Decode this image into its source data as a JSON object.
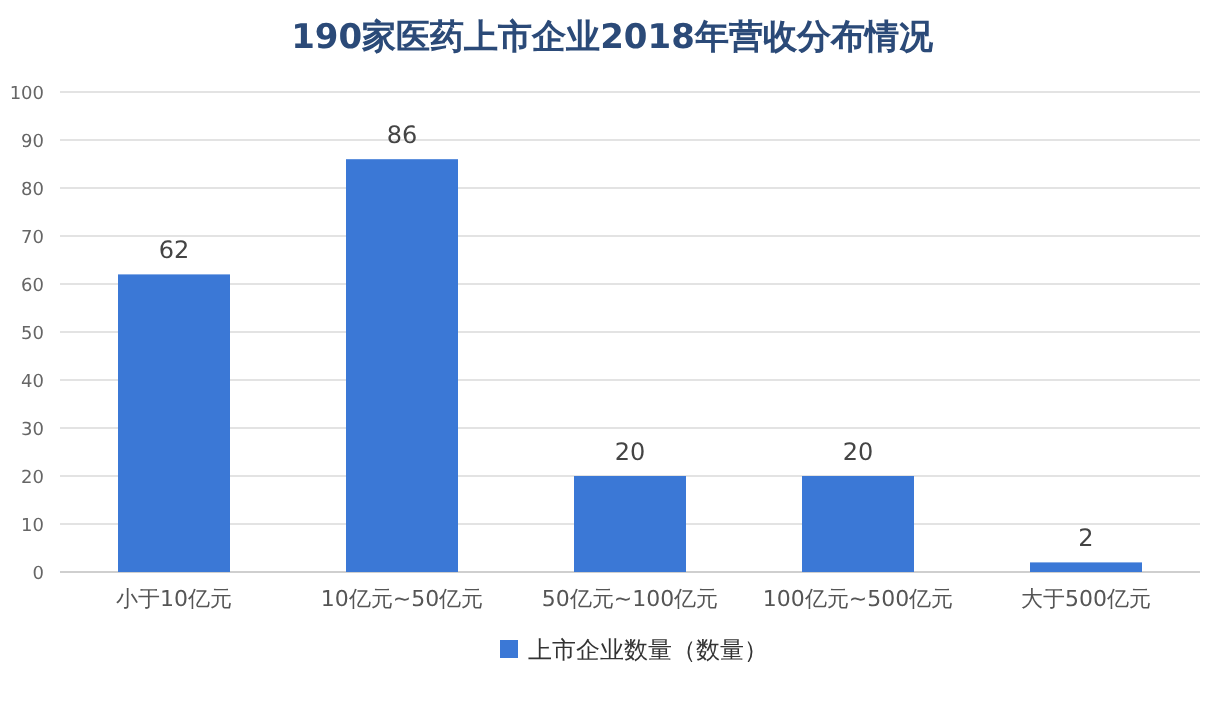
{
  "chart_data": {
    "type": "bar",
    "title": "190家医药上市企业2018年营收分布情况",
    "categories": [
      "小于10亿元",
      "10亿元~50亿元",
      "50亿元~100亿元",
      "100亿元~500亿元",
      "大于500亿元"
    ],
    "series": [
      {
        "name": "上市企业数量（数量）",
        "color": "#3b78d6",
        "values": [
          62,
          86,
          20,
          20,
          2
        ]
      }
    ],
    "ylim": [
      0,
      100
    ],
    "yticks": [
      0,
      10,
      20,
      30,
      40,
      50,
      60,
      70,
      80,
      90,
      100
    ],
    "grid": "y",
    "legend": "bottom",
    "data_labels": true
  }
}
